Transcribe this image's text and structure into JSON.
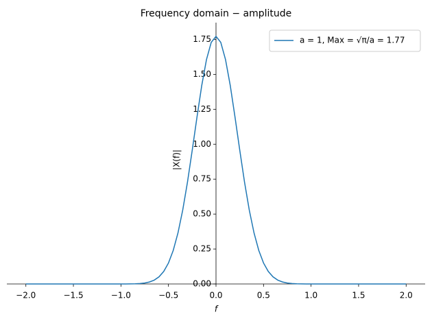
{
  "chart_data": {
    "type": "line",
    "title": "Frequency domain − amplitude",
    "x_label": "f",
    "y_label": "|X(f)|",
    "x": [
      -2.0,
      -1.5,
      -1.0,
      -0.95,
      -0.9,
      -0.85,
      -0.8,
      -0.75,
      -0.7,
      -0.65,
      -0.6,
      -0.55,
      -0.5,
      -0.45,
      -0.4,
      -0.35,
      -0.3,
      -0.25,
      -0.2,
      -0.15,
      -0.1,
      -0.05,
      0.0,
      0.05,
      0.1,
      0.15,
      0.2,
      0.25,
      0.3,
      0.35,
      0.4,
      0.45,
      0.5,
      0.55,
      0.6,
      0.65,
      0.7,
      0.75,
      0.8,
      0.85,
      0.9,
      0.95,
      1.0,
      1.5,
      2.0
    ],
    "series": [
      {
        "name": "a = 1, Max = √π/a = 1.77",
        "color": "#1f77b4",
        "values": [
          0,
          0,
          0.0001,
          0.0002,
          0.0006,
          0.0014,
          0.0032,
          0.0069,
          0.0141,
          0.0274,
          0.0508,
          0.0895,
          0.15,
          0.24,
          0.365,
          0.529,
          0.729,
          0.957,
          1.194,
          1.42,
          1.606,
          1.729,
          1.772,
          1.729,
          1.606,
          1.42,
          1.194,
          0.957,
          0.729,
          0.529,
          0.365,
          0.24,
          0.15,
          0.0895,
          0.0508,
          0.0274,
          0.0141,
          0.0069,
          0.0032,
          0.0014,
          0.0006,
          0.0002,
          0.0001,
          0,
          0
        ]
      }
    ],
    "xlim": [
      -2.2,
      2.2
    ],
    "ylim": [
      0,
      1.87
    ],
    "xticks": [
      {
        "value": -2.0,
        "label": "−2.0"
      },
      {
        "value": -1.5,
        "label": "−1.5"
      },
      {
        "value": -1.0,
        "label": "−1.0"
      },
      {
        "value": -0.5,
        "label": "−0.5"
      },
      {
        "value": 0,
        "label": "0.0"
      },
      {
        "value": 0.5,
        "label": "0.5"
      },
      {
        "value": 1.0,
        "label": "1.0"
      },
      {
        "value": 1.5,
        "label": "1.5"
      },
      {
        "value": 2.0,
        "label": "2.0"
      }
    ],
    "yticks": [
      {
        "value": 0,
        "label": "0.00"
      },
      {
        "value": 0.25,
        "label": "0.25"
      },
      {
        "value": 0.5,
        "label": "0.50"
      },
      {
        "value": 0.75,
        "label": "0.75"
      },
      {
        "value": 1.0,
        "label": "1.00"
      },
      {
        "value": 1.25,
        "label": "1.25"
      },
      {
        "value": 1.5,
        "label": "1.50"
      },
      {
        "value": 1.75,
        "label": "1.75"
      }
    ],
    "legend": "upper right"
  }
}
